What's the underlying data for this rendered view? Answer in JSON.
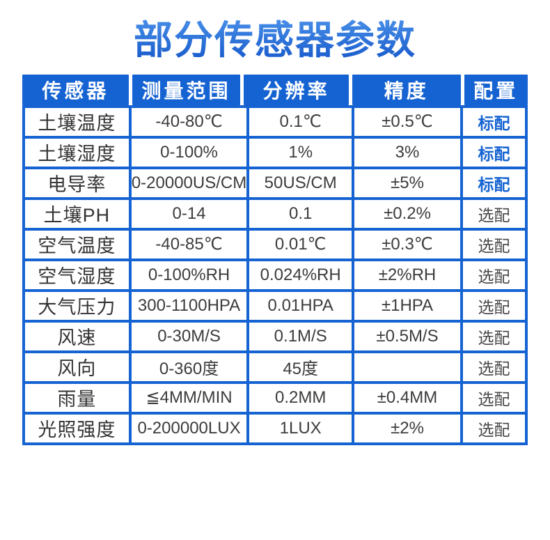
{
  "title": "部分传感器参数",
  "colors": {
    "header_blue": "#1563d2",
    "grid_border_blue": "#1563d2",
    "header_text": "#ffffff",
    "body_text": "#3c3c3c",
    "standard_config_text": "#1563d2",
    "title_gradient_from": "#4b92ea",
    "title_gradient_to": "#1254c8",
    "page_background": "#ffffff"
  },
  "table": {
    "columns": [
      "传感器",
      "测量范围",
      "分辨率",
      "精度",
      "配置"
    ],
    "rows": [
      {
        "sensor": "土壤温度",
        "range": "-40-80℃",
        "resolution": "0.1℃",
        "accuracy": "±0.5℃",
        "config": "标配",
        "standard": true
      },
      {
        "sensor": "土壤湿度",
        "range": "0-100%",
        "resolution": "1%",
        "accuracy": "3%",
        "config": "标配",
        "standard": true
      },
      {
        "sensor": "电导率",
        "range": "0-20000US/CM",
        "resolution": "50US/CM",
        "accuracy": "±5%",
        "config": "标配",
        "standard": true
      },
      {
        "sensor": "土壤PH",
        "range": "0-14",
        "resolution": "0.1",
        "accuracy": "±0.2%",
        "config": "选配",
        "standard": false
      },
      {
        "sensor": "空气温度",
        "range": "-40-85℃",
        "resolution": "0.01℃",
        "accuracy": "±0.3℃",
        "config": "选配",
        "standard": false
      },
      {
        "sensor": "空气湿度",
        "range": "0-100%RH",
        "resolution": "0.024%RH",
        "accuracy": "±2%RH",
        "config": "选配",
        "standard": false
      },
      {
        "sensor": "大气压力",
        "range": "300-1100HPA",
        "resolution": "0.01HPA",
        "accuracy": "±1HPA",
        "config": "选配",
        "standard": false
      },
      {
        "sensor": "风速",
        "range": "0-30M/S",
        "resolution": "0.1M/S",
        "accuracy": "±0.5M/S",
        "config": "选配",
        "standard": false
      },
      {
        "sensor": "风向",
        "range": "0-360度",
        "resolution": "45度",
        "accuracy": "",
        "config": "选配",
        "standard": false
      },
      {
        "sensor": "雨量",
        "range": "≦4MM/MIN",
        "resolution": "0.2MM",
        "accuracy": "±0.4MM",
        "config": "选配",
        "standard": false
      },
      {
        "sensor": "光照强度",
        "range": "0-200000LUX",
        "resolution": "1LUX",
        "accuracy": "±2%",
        "config": "选配",
        "standard": false
      }
    ]
  }
}
